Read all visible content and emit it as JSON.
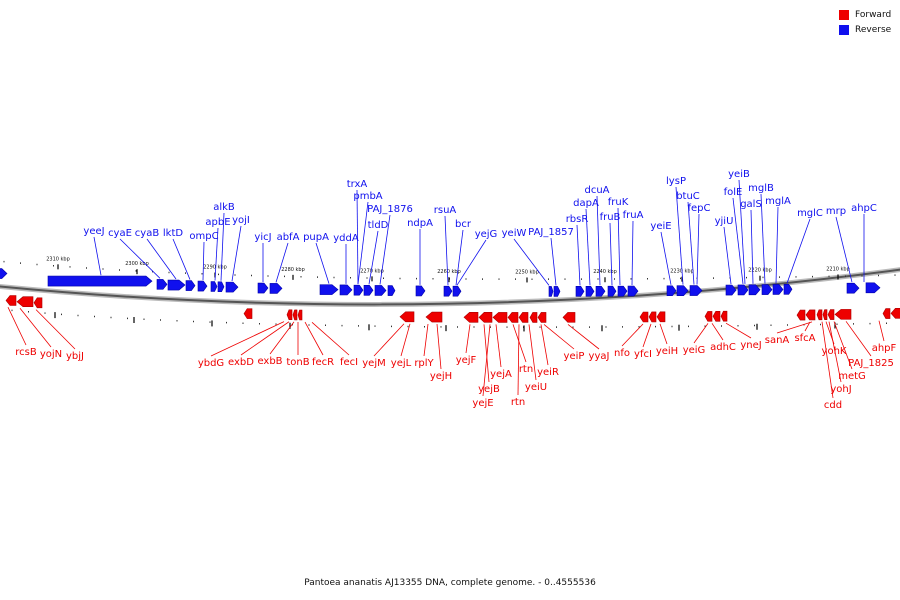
{
  "legend": {
    "forward_label": "Forward",
    "reverse_label": "Reverse",
    "forward_color": "#ee0000",
    "reverse_color": "#1010ee"
  },
  "caption": "Pantoea ananatis AJ13355 DNA, complete genome. - 0..4555536",
  "ticks": [
    "2310 kbp",
    "2300 kbp",
    "2290 kbp",
    "2280 kbp",
    "2270 kbp",
    "2260 kbp",
    "2250 kbp",
    "2240 kbp",
    "2230 kbp",
    "2220 kbp",
    "2210 kbp"
  ],
  "reverse_genes": [
    "yeeJ",
    "cyaE",
    "cyaB",
    "lktD",
    "ompC",
    "apbE",
    "alkB",
    "yojI",
    "yicJ",
    "abfA",
    "pupA",
    "yddA",
    "pmbA",
    "trxA",
    "tldD",
    "PAJ_1876",
    "ndpA",
    "rsuA",
    "bcr",
    "yejG",
    "yeiW",
    "PAJ_1857",
    "rbsR",
    "dapA",
    "dcuA",
    "fruB",
    "fruK",
    "fruA",
    "yeiE",
    "lysP",
    "btuC",
    "fepC",
    "yjiU",
    "folE",
    "yeiB",
    "galS",
    "mglB",
    "mglA",
    "mglC",
    "mrp",
    "ahpC"
  ],
  "forward_genes": [
    "rcsB",
    "yojN",
    "ybjJ",
    "ybdG",
    "exbD",
    "exbB",
    "tonB",
    "fecR",
    "fecI",
    "yejM",
    "yejL",
    "rplY",
    "yejH",
    "yejF",
    "yejB",
    "yejE",
    "yejA",
    "rtn",
    "rtn",
    "yeiU",
    "yeiR",
    "yeiP",
    "yyaJ",
    "nfo",
    "yfcI",
    "yeiH",
    "yeiG",
    "adhC",
    "yneJ",
    "sanA",
    "sfcA",
    "yohK",
    "cdd",
    "yohJ",
    "metG",
    "PAJ_1825",
    "ahpF"
  ]
}
